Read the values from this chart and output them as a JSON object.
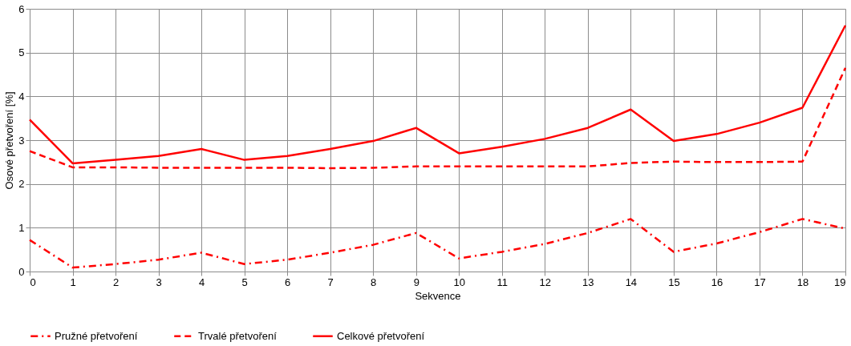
{
  "chart_data": {
    "type": "line",
    "xlabel": "Sekvence",
    "ylabel": "Osové přetvoření [%]",
    "x": [
      0,
      1,
      2,
      3,
      4,
      5,
      6,
      7,
      8,
      9,
      10,
      11,
      12,
      13,
      14,
      15,
      16,
      17,
      18,
      19
    ],
    "xlim": [
      0,
      19
    ],
    "xticks": [
      0,
      1,
      2,
      3,
      4,
      5,
      6,
      7,
      8,
      9,
      10,
      11,
      12,
      13,
      14,
      15,
      16,
      17,
      18,
      19
    ],
    "ylim": [
      0,
      6
    ],
    "yticks": [
      0,
      1,
      2,
      3,
      4,
      5,
      6
    ],
    "grid": true,
    "legend": "bottom",
    "marker": "none",
    "series": [
      {
        "name": "Pružné přetvoření",
        "color": "#ff0000",
        "line_style": "dashdot",
        "values": [
          0.72,
          0.09,
          0.17,
          0.27,
          0.43,
          0.17,
          0.27,
          0.43,
          0.61,
          0.88,
          0.3,
          0.45,
          0.63,
          0.88,
          1.2,
          0.45,
          0.64,
          0.9,
          1.2,
          0.98
        ]
      },
      {
        "name": "Trvalé přetvoření",
        "color": "#ff0000",
        "line_style": "dashed",
        "values": [
          2.75,
          2.38,
          2.38,
          2.37,
          2.37,
          2.37,
          2.37,
          2.36,
          2.37,
          2.4,
          2.4,
          2.4,
          2.4,
          2.4,
          2.48,
          2.51,
          2.5,
          2.5,
          2.51,
          4.65
        ]
      },
      {
        "name": "Celkové přetvoření",
        "color": "#ff0000",
        "line_style": "solid",
        "values": [
          3.47,
          2.47,
          2.55,
          2.64,
          2.8,
          2.55,
          2.64,
          2.8,
          2.98,
          3.28,
          2.7,
          2.85,
          3.03,
          3.28,
          3.7,
          2.98,
          3.14,
          3.4,
          3.74,
          5.62
        ]
      }
    ]
  }
}
